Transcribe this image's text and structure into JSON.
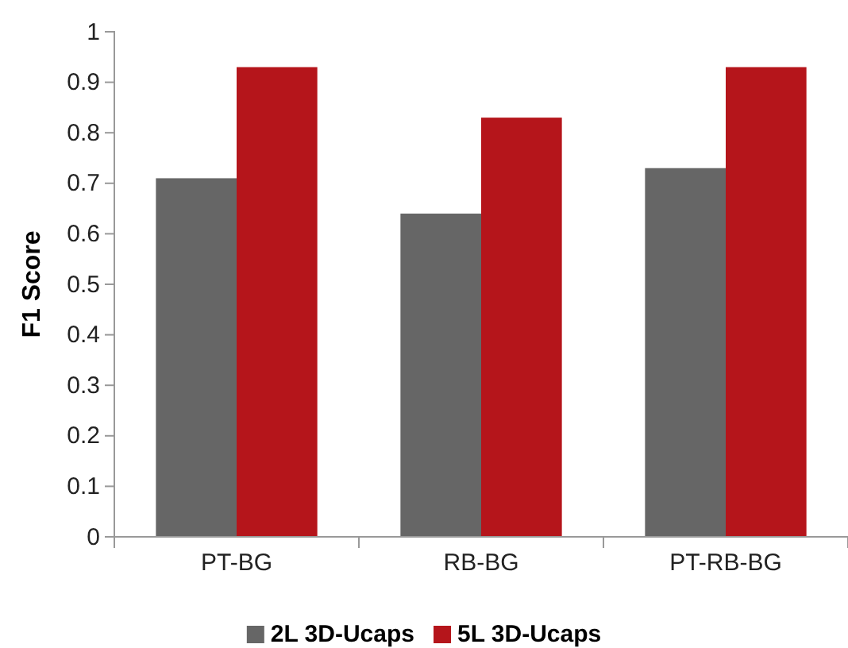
{
  "chart_data": {
    "type": "bar",
    "ylabel": "F1 Score",
    "categories": [
      "PT-BG",
      "RB-BG",
      "PT-RB-BG"
    ],
    "series": [
      {
        "name": "2L 3D-Ucaps",
        "color": "#666666",
        "values": [
          0.71,
          0.64,
          0.73
        ]
      },
      {
        "name": "5L 3D-Ucaps",
        "color": "#b5151b",
        "values": [
          0.93,
          0.83,
          0.93
        ]
      }
    ],
    "ylim": [
      0,
      1
    ],
    "yticks": [
      0,
      {
        "value": 0.1,
        "label": "0.1"
      },
      {
        "value": 0.2,
        "label": "0.2"
      },
      {
        "value": 0.3,
        "label": "0.3"
      },
      {
        "value": 0.4,
        "label": "0.4"
      },
      {
        "value": 0.5,
        "label": "0.5"
      },
      {
        "value": 0.6,
        "label": "0.6"
      },
      {
        "value": 0.7,
        "label": "0.7"
      },
      {
        "value": 0.8,
        "label": "0.8"
      },
      {
        "value": 0.9,
        "label": "0.9"
      },
      1
    ],
    "legend": "bottom"
  }
}
